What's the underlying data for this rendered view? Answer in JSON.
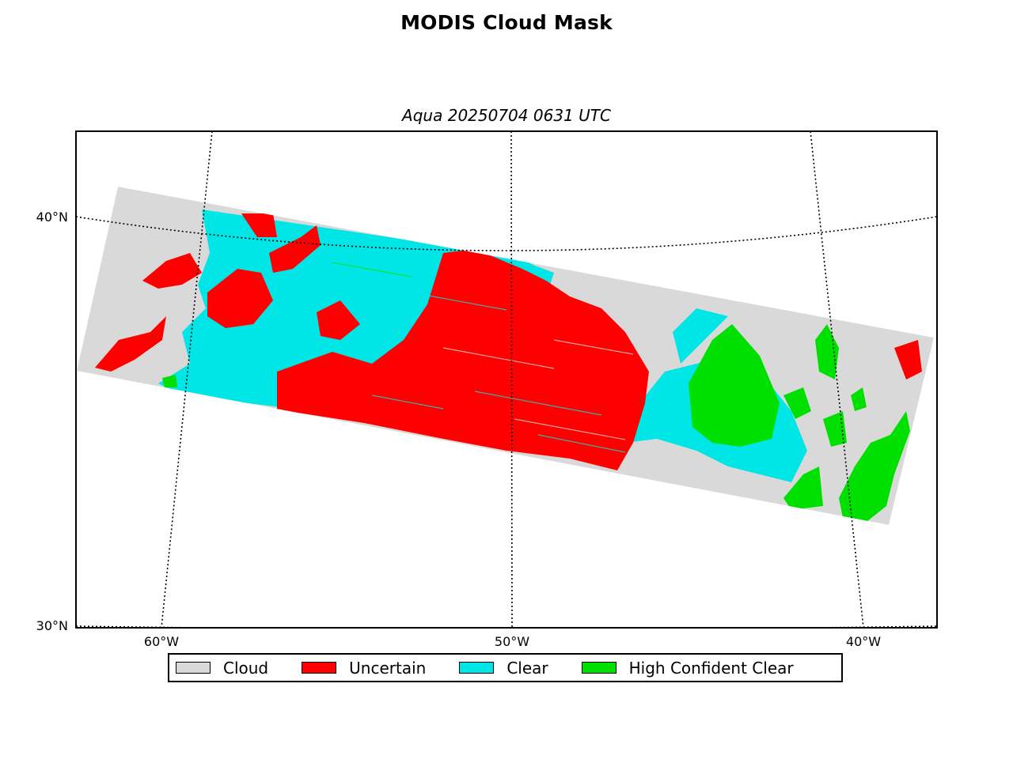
{
  "title": "MODIS Cloud Mask",
  "subtitle": "Aqua 20250704 0631 UTC",
  "lat_labels": [
    "40°N",
    "30°N"
  ],
  "lon_labels": [
    "60°W",
    "50°W",
    "40°W"
  ],
  "legend": [
    {
      "label": "Cloud",
      "color": "#d9d9d9"
    },
    {
      "label": "Uncertain",
      "color": "#ff0000"
    },
    {
      "label": "Clear",
      "color": "#00e5e5"
    },
    {
      "label": "High Confident Clear",
      "color": "#00e000"
    }
  ]
}
